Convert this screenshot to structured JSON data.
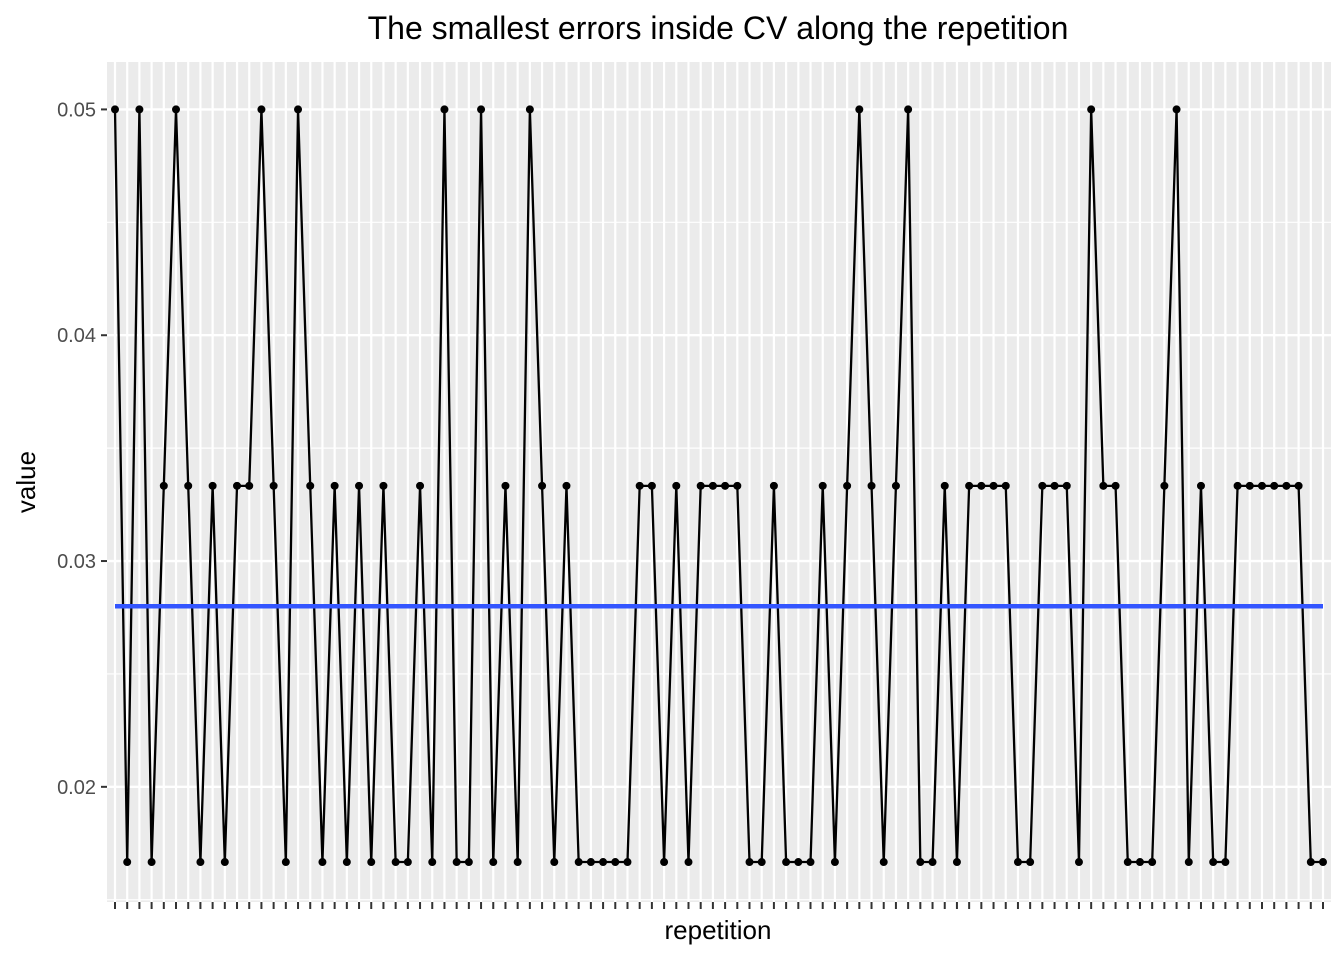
{
  "chart_data": {
    "type": "line",
    "title": "The smallest errors inside CV along the repetition",
    "xlabel": "repetition",
    "ylabel": "value",
    "ylim": [
      0.0149,
      0.0521
    ],
    "y_ticks": [
      0.02,
      0.03,
      0.04,
      0.05
    ],
    "y_tick_labels": [
      "0.02",
      "0.03",
      "0.04",
      "0.05"
    ],
    "x_tick_labels_visible": false,
    "grid": true,
    "x": [
      1,
      2,
      3,
      4,
      5,
      6,
      7,
      8,
      9,
      10,
      11,
      12,
      13,
      14,
      15,
      16,
      17,
      18,
      19,
      20,
      21,
      22,
      23,
      24,
      25,
      26,
      27,
      28,
      29,
      30,
      31,
      32,
      33,
      34,
      35,
      36,
      37,
      38,
      39,
      40,
      41,
      42,
      43,
      44,
      45,
      46,
      47,
      48,
      49,
      50,
      51,
      52,
      53,
      54,
      55,
      56,
      57,
      58,
      59,
      60,
      61,
      62,
      63,
      64,
      65,
      66,
      67,
      68,
      69,
      70,
      71,
      72,
      73,
      74,
      75,
      76,
      77,
      78,
      79,
      80,
      81,
      82,
      83,
      84,
      85,
      86,
      87,
      88,
      89,
      90,
      91,
      92,
      93,
      94,
      95,
      96,
      97,
      98,
      99,
      100
    ],
    "series": [
      {
        "values": [
          0.05,
          0.01667,
          0.05,
          0.01667,
          0.03333,
          0.05,
          0.03333,
          0.01667,
          0.03333,
          0.01667,
          0.03333,
          0.03333,
          0.05,
          0.03333,
          0.01667,
          0.05,
          0.03333,
          0.01667,
          0.03333,
          0.01667,
          0.03333,
          0.01667,
          0.03333,
          0.01667,
          0.01667,
          0.03333,
          0.01667,
          0.05,
          0.01667,
          0.01667,
          0.05,
          0.01667,
          0.03333,
          0.01667,
          0.05,
          0.03333,
          0.01667,
          0.03333,
          0.01667,
          0.01667,
          0.01667,
          0.01667,
          0.01667,
          0.03333,
          0.03333,
          0.01667,
          0.03333,
          0.01667,
          0.03333,
          0.03333,
          0.03333,
          0.03333,
          0.01667,
          0.01667,
          0.03333,
          0.01667,
          0.01667,
          0.01667,
          0.03333,
          0.01667,
          0.03333,
          0.05,
          0.03333,
          0.01667,
          0.03333,
          0.05,
          0.01667,
          0.01667,
          0.03333,
          0.01667,
          0.03333,
          0.03333,
          0.03333,
          0.03333,
          0.01667,
          0.01667,
          0.03333,
          0.03333,
          0.03333,
          0.01667,
          0.05,
          0.03333,
          0.03333,
          0.01667,
          0.01667,
          0.01667,
          0.03333,
          0.05,
          0.01667,
          0.03333,
          0.01667,
          0.01667,
          0.03333,
          0.03333,
          0.03333,
          0.03333,
          0.03333,
          0.03333,
          0.01667,
          0.01667
        ],
        "color": "#000000"
      }
    ],
    "hline": {
      "y": 0.028,
      "color": "#3355ff"
    }
  },
  "colors": {
    "panel_background": "#ebebeb",
    "grid_major": "#ffffff",
    "tick_color": "#333333"
  }
}
